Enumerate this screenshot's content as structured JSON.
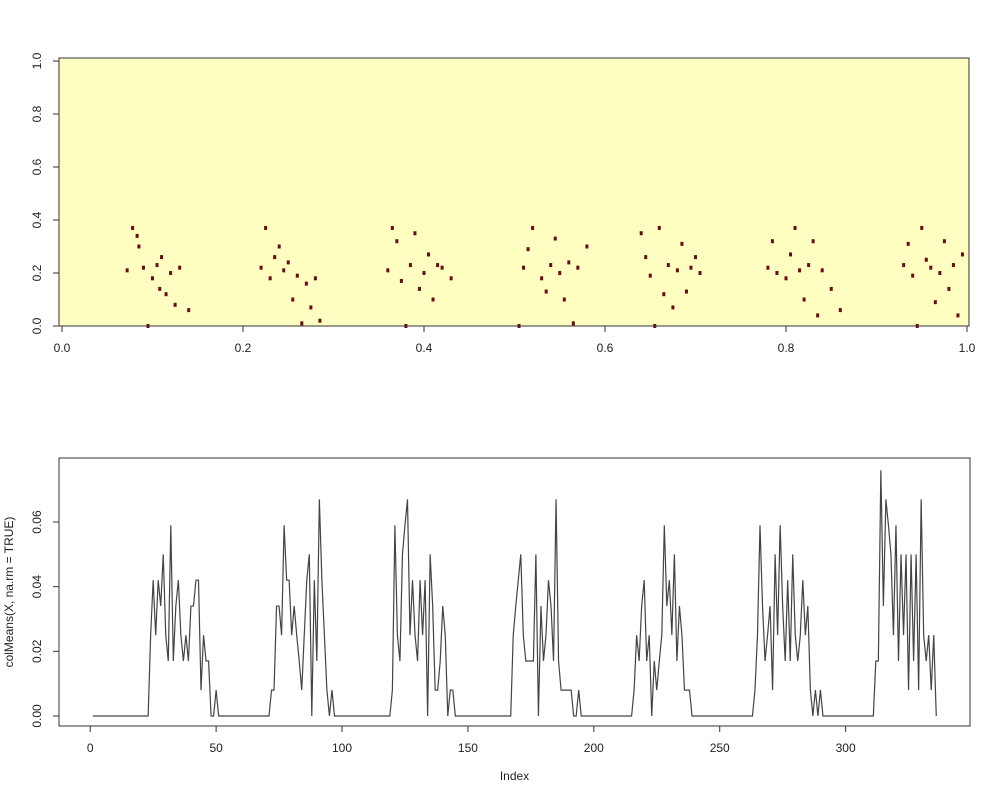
{
  "chart_data": [
    {
      "type": "heatmap",
      "background_color": "#fefec0",
      "color": "#6b0a14",
      "xlim": [
        0,
        1
      ],
      "ylim": [
        0,
        1
      ],
      "xticks": [
        {
          "value": 0,
          "label": "0.0"
        },
        {
          "value": 0.2,
          "label": "0.2"
        },
        {
          "value": 0.4,
          "label": "0.4"
        },
        {
          "value": 0.6,
          "label": "0.6"
        },
        {
          "value": 0.8,
          "label": "0.8"
        },
        {
          "value": 1,
          "label": "1.0"
        }
      ],
      "yticks": [
        {
          "value": 0,
          "label": "0.0"
        },
        {
          "value": 0.2,
          "label": "0.2"
        },
        {
          "value": 0.4,
          "label": "0.4"
        },
        {
          "value": 0.6,
          "label": "0.6"
        },
        {
          "value": 0.8,
          "label": "0.8"
        },
        {
          "value": 1,
          "label": "1.0"
        }
      ],
      "cells": [
        [
          0.072,
          0.21
        ],
        [
          0.078,
          0.37
        ],
        [
          0.085,
          0.3
        ],
        [
          0.09,
          0.22
        ],
        [
          0.095,
          0.0
        ],
        [
          0.1,
          0.18
        ],
        [
          0.105,
          0.23
        ],
        [
          0.11,
          0.26
        ],
        [
          0.115,
          0.12
        ],
        [
          0.12,
          0.2
        ],
        [
          0.125,
          0.08
        ],
        [
          0.13,
          0.22
        ],
        [
          0.14,
          0.06
        ],
        [
          0.083,
          0.34
        ],
        [
          0.108,
          0.14
        ],
        [
          0.22,
          0.22
        ],
        [
          0.225,
          0.37
        ],
        [
          0.23,
          0.18
        ],
        [
          0.24,
          0.3
        ],
        [
          0.245,
          0.21
        ],
        [
          0.25,
          0.24
        ],
        [
          0.255,
          0.1
        ],
        [
          0.26,
          0.19
        ],
        [
          0.265,
          0.01
        ],
        [
          0.27,
          0.16
        ],
        [
          0.275,
          0.07
        ],
        [
          0.28,
          0.18
        ],
        [
          0.285,
          0.02
        ],
        [
          0.235,
          0.26
        ],
        [
          0.36,
          0.21
        ],
        [
          0.365,
          0.37
        ],
        [
          0.37,
          0.32
        ],
        [
          0.375,
          0.17
        ],
        [
          0.38,
          0.0
        ],
        [
          0.385,
          0.23
        ],
        [
          0.39,
          0.35
        ],
        [
          0.395,
          0.14
        ],
        [
          0.4,
          0.2
        ],
        [
          0.41,
          0.1
        ],
        [
          0.415,
          0.23
        ],
        [
          0.42,
          0.22
        ],
        [
          0.43,
          0.18
        ],
        [
          0.405,
          0.27
        ],
        [
          0.505,
          0.0
        ],
        [
          0.51,
          0.22
        ],
        [
          0.515,
          0.29
        ],
        [
          0.52,
          0.37
        ],
        [
          0.53,
          0.18
        ],
        [
          0.535,
          0.13
        ],
        [
          0.54,
          0.23
        ],
        [
          0.545,
          0.33
        ],
        [
          0.55,
          0.2
        ],
        [
          0.555,
          0.1
        ],
        [
          0.56,
          0.24
        ],
        [
          0.565,
          0.01
        ],
        [
          0.57,
          0.22
        ],
        [
          0.58,
          0.3
        ],
        [
          0.64,
          0.35
        ],
        [
          0.645,
          0.26
        ],
        [
          0.65,
          0.19
        ],
        [
          0.655,
          0.0
        ],
        [
          0.66,
          0.37
        ],
        [
          0.665,
          0.12
        ],
        [
          0.67,
          0.23
        ],
        [
          0.68,
          0.21
        ],
        [
          0.685,
          0.31
        ],
        [
          0.69,
          0.13
        ],
        [
          0.695,
          0.22
        ],
        [
          0.7,
          0.26
        ],
        [
          0.675,
          0.07
        ],
        [
          0.705,
          0.2
        ],
        [
          0.78,
          0.22
        ],
        [
          0.785,
          0.32
        ],
        [
          0.79,
          0.2
        ],
        [
          0.8,
          0.18
        ],
        [
          0.805,
          0.27
        ],
        [
          0.81,
          0.37
        ],
        [
          0.815,
          0.21
        ],
        [
          0.82,
          0.1
        ],
        [
          0.825,
          0.23
        ],
        [
          0.83,
          0.32
        ],
        [
          0.835,
          0.04
        ],
        [
          0.84,
          0.21
        ],
        [
          0.85,
          0.14
        ],
        [
          0.86,
          0.06
        ],
        [
          0.93,
          0.23
        ],
        [
          0.935,
          0.31
        ],
        [
          0.94,
          0.19
        ],
        [
          0.945,
          0.0
        ],
        [
          0.95,
          0.37
        ],
        [
          0.955,
          0.25
        ],
        [
          0.96,
          0.22
        ],
        [
          0.965,
          0.09
        ],
        [
          0.97,
          0.2
        ],
        [
          0.975,
          0.32
        ],
        [
          0.98,
          0.14
        ],
        [
          0.985,
          0.23
        ],
        [
          0.99,
          0.04
        ],
        [
          0.995,
          0.27
        ]
      ]
    },
    {
      "type": "line",
      "color": "#444444",
      "x_label": "Index",
      "y_label": "colMeans(X, na.rm = TRUE)",
      "xlim": [
        -12.4,
        349.4
      ],
      "ylim": [
        -0.0031,
        0.0798
      ],
      "xticks": [
        0,
        50,
        100,
        150,
        200,
        250,
        300
      ],
      "yticks": [
        {
          "value": 0,
          "label": "0.00"
        },
        {
          "value": 0.02,
          "label": "0.02"
        },
        {
          "value": 0.04,
          "label": "0.04"
        },
        {
          "value": 0.06,
          "label": "0.06"
        }
      ],
      "values": [
        0,
        0,
        0,
        0,
        0,
        0,
        0,
        0,
        0,
        0,
        0,
        0,
        0,
        0,
        0,
        0,
        0,
        0,
        0,
        0,
        0,
        0,
        0,
        0.025,
        0.042,
        0.025,
        0.042,
        0.034,
        0.05,
        0.025,
        0.017,
        0.059,
        0.017,
        0.034,
        0.042,
        0.025,
        0.017,
        0.025,
        0.017,
        0.034,
        0.034,
        0.042,
        0.042,
        0.008,
        0.025,
        0.017,
        0.017,
        0,
        0,
        0.008,
        0,
        0,
        0,
        0,
        0,
        0,
        0,
        0,
        0,
        0,
        0,
        0,
        0,
        0,
        0,
        0,
        0,
        0,
        0,
        0,
        0,
        0.008,
        0.008,
        0.034,
        0.034,
        0.025,
        0.059,
        0.042,
        0.042,
        0.025,
        0.034,
        0.025,
        0.017,
        0.008,
        0.025,
        0.042,
        0.05,
        0,
        0.042,
        0.017,
        0.067,
        0.042,
        0.025,
        0.008,
        0,
        0.008,
        0,
        0,
        0,
        0,
        0,
        0,
        0,
        0,
        0,
        0,
        0,
        0,
        0,
        0,
        0,
        0,
        0,
        0,
        0,
        0,
        0,
        0,
        0,
        0.008,
        0.059,
        0.025,
        0.017,
        0.05,
        0.059,
        0.067,
        0.025,
        0.042,
        0.025,
        0.017,
        0.042,
        0.025,
        0.042,
        0,
        0.05,
        0.034,
        0.008,
        0.008,
        0.017,
        0.034,
        0.025,
        0,
        0.008,
        0.008,
        0,
        0,
        0,
        0,
        0,
        0,
        0,
        0,
        0,
        0,
        0,
        0,
        0,
        0,
        0,
        0,
        0,
        0,
        0,
        0,
        0,
        0,
        0,
        0.025,
        0.034,
        0.042,
        0.05,
        0.025,
        0.017,
        0.017,
        0.017,
        0.017,
        0.05,
        0,
        0.034,
        0.017,
        0.025,
        0.042,
        0.034,
        0.017,
        0.067,
        0.017,
        0.008,
        0.008,
        0.008,
        0.008,
        0.008,
        0,
        0,
        0.008,
        0,
        0,
        0,
        0,
        0,
        0,
        0,
        0,
        0,
        0,
        0,
        0,
        0,
        0,
        0,
        0,
        0,
        0,
        0,
        0,
        0,
        0.008,
        0.025,
        0.017,
        0.034,
        0.042,
        0.017,
        0.025,
        0,
        0.017,
        0.008,
        0.017,
        0.025,
        0.059,
        0.034,
        0.042,
        0.025,
        0.05,
        0.017,
        0.034,
        0.025,
        0.008,
        0.008,
        0.008,
        0,
        0,
        0,
        0,
        0,
        0,
        0,
        0,
        0,
        0,
        0,
        0,
        0,
        0,
        0,
        0,
        0,
        0,
        0,
        0,
        0,
        0,
        0,
        0,
        0,
        0.008,
        0.025,
        0.059,
        0.034,
        0.017,
        0.025,
        0.034,
        0.008,
        0.05,
        0.025,
        0.059,
        0.034,
        0.017,
        0.042,
        0.017,
        0.05,
        0.025,
        0.017,
        0.025,
        0.042,
        0.025,
        0.034,
        0.008,
        0,
        0.008,
        0,
        0.008,
        0,
        0,
        0,
        0,
        0,
        0,
        0,
        0,
        0,
        0,
        0,
        0,
        0,
        0,
        0,
        0,
        0,
        0,
        0,
        0,
        0,
        0.017,
        0.017,
        0.076,
        0.034,
        0.067,
        0.059,
        0.05,
        0.025,
        0.059,
        0.017,
        0.05,
        0.025,
        0.05,
        0.008,
        0.05,
        0.017,
        0.05,
        0.008,
        0.067,
        0.025,
        0.017,
        0.025,
        0.008,
        0.025,
        0
      ]
    }
  ]
}
